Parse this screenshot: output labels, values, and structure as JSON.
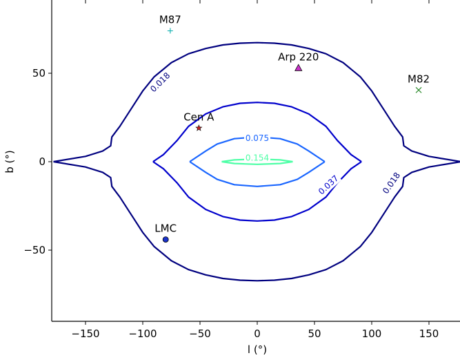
{
  "chart_data": {
    "type": "contour",
    "xlabel": "l (°)",
    "ylabel": "b (°)",
    "xlim": [
      -180,
      180
    ],
    "ylim": [
      -90,
      90
    ],
    "xticks": [
      -150,
      -100,
      -50,
      0,
      50,
      100,
      150
    ],
    "yticks": [
      -50,
      0,
      50
    ],
    "xtick_labels": [
      "−150",
      "−100",
      "−50",
      "0",
      "50",
      "100",
      "150"
    ],
    "ytick_labels": [
      "−50",
      "0",
      "50"
    ],
    "grid": false,
    "contours": [
      {
        "level": "0.018",
        "color": "#00007f",
        "label_positions": [
          [
            -85,
            45
          ],
          [
            117,
            -12
          ]
        ],
        "upper": [
          [
            -178,
            0
          ],
          [
            -150,
            3
          ],
          [
            -135,
            6
          ],
          [
            -128,
            9
          ],
          [
            -127,
            14
          ],
          [
            -120,
            20
          ],
          [
            -110,
            30
          ],
          [
            -100,
            40
          ],
          [
            -90,
            48
          ],
          [
            -75,
            56
          ],
          [
            -60,
            61
          ],
          [
            -45,
            64
          ],
          [
            -30,
            66
          ],
          [
            -15,
            67
          ],
          [
            0,
            67.3
          ],
          [
            15,
            67
          ],
          [
            30,
            66
          ],
          [
            45,
            64
          ],
          [
            60,
            61
          ],
          [
            75,
            56
          ],
          [
            90,
            48
          ],
          [
            100,
            40
          ],
          [
            110,
            30
          ],
          [
            120,
            20
          ],
          [
            127,
            14
          ],
          [
            128,
            9
          ],
          [
            135,
            6
          ],
          [
            150,
            3
          ],
          [
            178,
            0
          ]
        ],
        "lower": [
          [
            -178,
            0
          ],
          [
            -150,
            -3
          ],
          [
            -135,
            -6
          ],
          [
            -128,
            -9
          ],
          [
            -127,
            -14
          ],
          [
            -120,
            -20
          ],
          [
            -110,
            -30
          ],
          [
            -100,
            -40
          ],
          [
            -90,
            -48
          ],
          [
            -75,
            -56
          ],
          [
            -60,
            -61
          ],
          [
            -45,
            -64
          ],
          [
            -30,
            -66
          ],
          [
            -15,
            -67
          ],
          [
            0,
            -67.3
          ],
          [
            15,
            -67
          ],
          [
            30,
            -66
          ],
          [
            45,
            -64
          ],
          [
            60,
            -61
          ],
          [
            75,
            -56
          ],
          [
            90,
            -48
          ],
          [
            100,
            -40
          ],
          [
            110,
            -30
          ],
          [
            120,
            -20
          ],
          [
            127,
            -14
          ],
          [
            128,
            -9
          ],
          [
            135,
            -6
          ],
          [
            150,
            -3
          ],
          [
            178,
            0
          ]
        ]
      },
      {
        "level": "0.037",
        "color": "#0000cc",
        "label_positions": [
          [
            62,
            -13
          ]
        ],
        "upper": [
          [
            -91,
            0
          ],
          [
            -82,
            4
          ],
          [
            -70,
            12
          ],
          [
            -60,
            20
          ],
          [
            -45,
            27
          ],
          [
            -30,
            31
          ],
          [
            -15,
            33
          ],
          [
            0,
            33.5
          ],
          [
            15,
            33
          ],
          [
            30,
            31
          ],
          [
            45,
            27
          ],
          [
            60,
            20
          ],
          [
            70,
            12
          ],
          [
            82,
            4
          ],
          [
            91,
            0
          ]
        ],
        "lower": [
          [
            -91,
            0
          ],
          [
            -82,
            -4
          ],
          [
            -70,
            -12
          ],
          [
            -60,
            -20
          ],
          [
            -45,
            -27
          ],
          [
            -30,
            -31
          ],
          [
            -15,
            -33
          ],
          [
            0,
            -33.5
          ],
          [
            15,
            -33
          ],
          [
            30,
            -31
          ],
          [
            45,
            -27
          ],
          [
            60,
            -20
          ],
          [
            70,
            -12
          ],
          [
            82,
            -4
          ],
          [
            91,
            0
          ]
        ]
      },
      {
        "level": "0.075",
        "color": "#1a66ff",
        "label_positions": [
          [
            0,
            13.5
          ]
        ],
        "upper": [
          [
            -59,
            0
          ],
          [
            -45,
            6
          ],
          [
            -35,
            10
          ],
          [
            -20,
            13
          ],
          [
            0,
            14
          ],
          [
            20,
            13
          ],
          [
            35,
            10
          ],
          [
            45,
            6
          ],
          [
            59,
            0
          ]
        ],
        "lower": [
          [
            -59,
            0
          ],
          [
            -45,
            -6
          ],
          [
            -35,
            -10
          ],
          [
            -20,
            -13
          ],
          [
            0,
            -14
          ],
          [
            20,
            -13
          ],
          [
            35,
            -10
          ],
          [
            45,
            -6
          ],
          [
            59,
            0
          ]
        ]
      },
      {
        "level": "0.154",
        "color": "#4dffa6",
        "label_positions": [
          [
            0,
            2.3
          ]
        ],
        "upper": [
          [
            -31,
            0
          ],
          [
            -20,
            1
          ],
          [
            0,
            1.5
          ],
          [
            20,
            1
          ],
          [
            31,
            0
          ]
        ],
        "lower": [
          [
            -31,
            0
          ],
          [
            -20,
            -1
          ],
          [
            0,
            -1.5
          ],
          [
            20,
            -1
          ],
          [
            31,
            0
          ]
        ]
      }
    ],
    "sources": [
      {
        "name": "M87",
        "l": -76,
        "b": 74,
        "marker": "plus",
        "color": "#1ab3b3"
      },
      {
        "name": "Arp 220",
        "l": 36,
        "b": 53,
        "marker": "triangle",
        "color": "#cc33cc"
      },
      {
        "name": "M82",
        "l": 141,
        "b": 40.5,
        "marker": "x",
        "color": "#2e8b2e"
      },
      {
        "name": "Cen A",
        "l": -51,
        "b": 19,
        "marker": "star",
        "color": "#cc2222"
      },
      {
        "name": "LMC",
        "l": -80,
        "b": -44,
        "marker": "circle",
        "color": "#1a33cc"
      }
    ]
  }
}
